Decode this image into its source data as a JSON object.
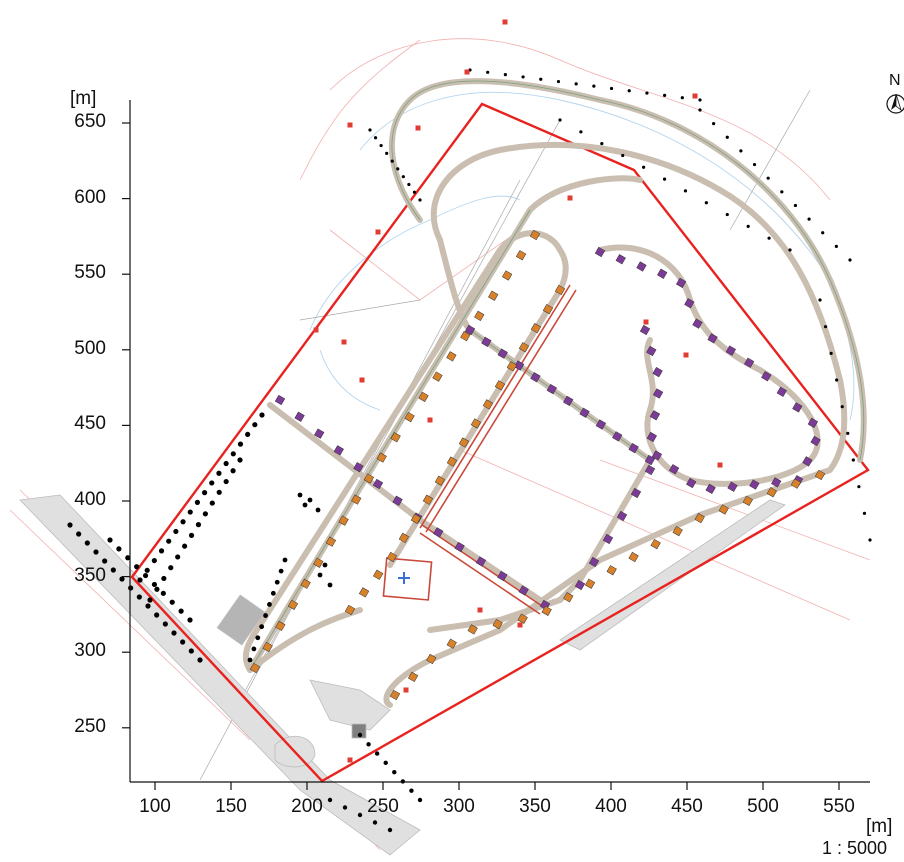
{
  "map": {
    "y_unit_label": "[m]",
    "x_unit_label": "[m]",
    "scale_label": "1 : 5000",
    "north_label": "N",
    "y_ticks": [
      "650",
      "600",
      "550",
      "500",
      "450",
      "400",
      "350",
      "300",
      "250"
    ],
    "x_ticks": [
      "100",
      "150",
      "200",
      "250",
      "300",
      "350",
      "400",
      "450",
      "500",
      "550"
    ],
    "colors": {
      "boundary": "#e8221e",
      "road": "#c9beb0",
      "marker_purple": "#7d3b98",
      "marker_orange": "#d7822a",
      "trees": "#000000",
      "contour_blue": "#9cc7e6",
      "pink_lines": "#f0a0a0",
      "paved_area": "#cccccc"
    }
  }
}
